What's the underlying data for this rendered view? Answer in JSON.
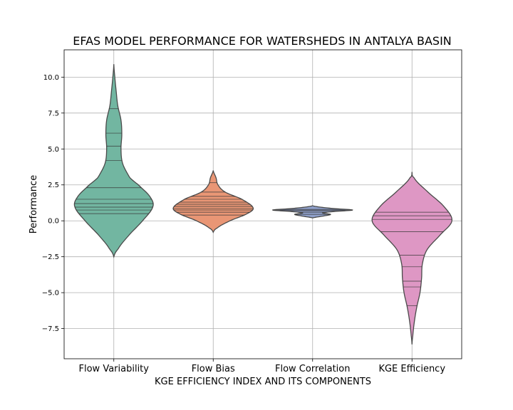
{
  "chart_data": {
    "type": "violin",
    "title": "EFAS MODEL PERFORMANCE FOR WATERSHEDS IN ANTALYA BASIN",
    "xlabel": "KGE EFFICIENCY INDEX AND ITS COMPONENTS",
    "ylabel": "Performance",
    "ylim": [
      -9.6,
      11.9
    ],
    "yticks": [
      -7.5,
      -5.0,
      -2.5,
      0.0,
      2.5,
      5.0,
      7.5,
      10.0
    ],
    "ytick_labels": [
      "−7.5",
      "−5.0",
      "−2.5",
      "0.0",
      "2.5",
      "5.0",
      "7.5",
      "10.0"
    ],
    "grid": true,
    "categories": [
      "Flow Variability",
      "Flow Bias",
      "Flow Correlation",
      "KGE Efficiency"
    ],
    "series": [
      {
        "color": "#72b6a1",
        "range": [
          -2.5,
          10.9
        ],
        "profile": [
          [
            -2.5,
            0.0
          ],
          [
            -2.0,
            0.1
          ],
          [
            -1.0,
            0.38
          ],
          [
            0.0,
            0.72
          ],
          [
            1.0,
            0.98
          ],
          [
            1.7,
            0.9
          ],
          [
            2.5,
            0.62
          ],
          [
            3.0,
            0.4
          ],
          [
            4.0,
            0.22
          ],
          [
            5.0,
            0.18
          ],
          [
            6.0,
            0.2
          ],
          [
            7.0,
            0.18
          ],
          [
            8.0,
            0.1
          ],
          [
            9.0,
            0.06
          ],
          [
            10.0,
            0.025
          ],
          [
            10.9,
            0.0
          ]
        ],
        "inner_lines": [
          0.5,
          0.75,
          0.95,
          1.2,
          1.5,
          2.3,
          4.2,
          5.2,
          6.1,
          7.8
        ]
      },
      {
        "color": "#e99675",
        "range": [
          -0.8,
          3.5
        ],
        "profile": [
          [
            -0.8,
            0.0
          ],
          [
            -0.5,
            0.1
          ],
          [
            0.0,
            0.42
          ],
          [
            0.5,
            0.85
          ],
          [
            0.9,
            1.0
          ],
          [
            1.5,
            0.72
          ],
          [
            2.0,
            0.3
          ],
          [
            2.5,
            0.12
          ],
          [
            3.0,
            0.07
          ],
          [
            3.5,
            0.0
          ]
        ],
        "inner_lines": [
          0.4,
          0.6,
          0.75,
          0.85,
          1.0,
          1.15,
          1.3,
          1.5,
          1.7,
          2.0,
          2.65
        ]
      },
      {
        "color": "#8fa0cb",
        "range": [
          0.2,
          1.05
        ],
        "profile": [
          [
            0.2,
            0.0
          ],
          [
            0.35,
            0.3
          ],
          [
            0.45,
            0.45
          ],
          [
            0.55,
            0.25
          ],
          [
            0.65,
            0.55
          ],
          [
            0.75,
            1.0
          ],
          [
            0.85,
            0.55
          ],
          [
            0.95,
            0.2
          ],
          [
            1.05,
            0.0
          ]
        ],
        "inner_lines": [
          0.45,
          0.6,
          0.7,
          0.75,
          0.8
        ]
      },
      {
        "color": "#de97c4",
        "range": [
          -8.6,
          3.4
        ],
        "profile": [
          [
            -8.6,
            0.0
          ],
          [
            -8.0,
            0.02
          ],
          [
            -7.0,
            0.06
          ],
          [
            -6.0,
            0.12
          ],
          [
            -5.0,
            0.2
          ],
          [
            -4.0,
            0.24
          ],
          [
            -3.0,
            0.26
          ],
          [
            -2.0,
            0.38
          ],
          [
            -1.0,
            0.7
          ],
          [
            0.0,
            1.0
          ],
          [
            1.0,
            0.8
          ],
          [
            2.0,
            0.4
          ],
          [
            3.0,
            0.05
          ],
          [
            3.4,
            0.0
          ]
        ],
        "inner_lines": [
          -5.9,
          -4.6,
          -4.2,
          -3.2,
          -2.4,
          -0.75,
          0.1,
          0.35,
          0.6
        ]
      }
    ]
  }
}
